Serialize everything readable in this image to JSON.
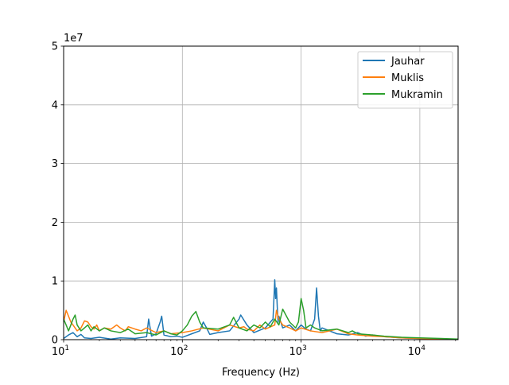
{
  "chart_data": {
    "type": "line",
    "xlabel": "Frequency (Hz)",
    "ylabel": "",
    "x_scale": "log",
    "xlim": [
      10,
      21000
    ],
    "ylim": [
      0,
      50000000
    ],
    "y_offset_text": "1e7",
    "y_ticks": [
      0,
      10000000,
      20000000,
      30000000,
      40000000,
      50000000
    ],
    "y_tick_labels": [
      "0",
      "1",
      "2",
      "3",
      "4",
      "5"
    ],
    "x_ticks": [
      10,
      100,
      1000,
      10000
    ],
    "x_tick_labels": [
      {
        "base": "10",
        "exp": "1"
      },
      {
        "base": "10",
        "exp": "2"
      },
      {
        "base": "10",
        "exp": "3"
      },
      {
        "base": "10",
        "exp": "4"
      }
    ],
    "grid": true,
    "legend_position": "top-right",
    "series": [
      {
        "name": "Jauhar",
        "color": "#1f77b4",
        "x": [
          10,
          11,
          12,
          13,
          14,
          15,
          17,
          20,
          25,
          30,
          40,
          50,
          52,
          55,
          60,
          65,
          67,
          70,
          80,
          90,
          100,
          120,
          140,
          150,
          160,
          170,
          200,
          250,
          300,
          310,
          350,
          400,
          500,
          580,
          600,
          610,
          620,
          630,
          640,
          650,
          700,
          800,
          900,
          1000,
          1100,
          1200,
          1300,
          1350,
          1400,
          1450,
          1500,
          2000,
          2500,
          3000,
          3500,
          4000,
          5000,
          7000,
          10000,
          15000,
          21000
        ],
        "y": [
          200000,
          800000,
          1200000,
          500000,
          900000,
          300000,
          200000,
          400000,
          100000,
          300000,
          200000,
          500000,
          3500000,
          600000,
          1000000,
          3000000,
          4000000,
          800000,
          500000,
          600000,
          400000,
          1000000,
          1500000,
          3000000,
          2000000,
          900000,
          1200000,
          1500000,
          3500000,
          4200000,
          2500000,
          1200000,
          2000000,
          3500000,
          10200000,
          7000000,
          8800000,
          5500000,
          3000000,
          4000000,
          2000000,
          2500000,
          1500000,
          2500000,
          1800000,
          1500000,
          3500000,
          8800000,
          4000000,
          1500000,
          2000000,
          1000000,
          800000,
          1200000,
          600000,
          800000,
          500000,
          300000,
          200000,
          100000,
          50000
        ]
      },
      {
        "name": "Muklis",
        "color": "#ff7f0e",
        "x": [
          10,
          10.5,
          11,
          11.5,
          12,
          13,
          14,
          15,
          16,
          17,
          18,
          19,
          20,
          22,
          25,
          28,
          30,
          33,
          35,
          40,
          45,
          50,
          60,
          70,
          80,
          100,
          120,
          150,
          200,
          250,
          300,
          330,
          350,
          400,
          450,
          500,
          600,
          620,
          650,
          700,
          800,
          900,
          1000,
          1200,
          1500,
          2000,
          2500,
          3000,
          4000,
          5000,
          7000,
          10000,
          15000,
          21000
        ],
        "y": [
          3000000,
          5000000,
          4000000,
          3000000,
          2500000,
          1500000,
          2000000,
          3200000,
          3000000,
          2200000,
          1800000,
          2500000,
          1500000,
          2000000,
          1800000,
          2500000,
          2000000,
          1500000,
          2200000,
          1800000,
          1500000,
          2000000,
          1200000,
          1500000,
          1000000,
          1200000,
          1500000,
          2000000,
          1500000,
          2500000,
          2000000,
          2200000,
          1800000,
          1500000,
          2500000,
          1800000,
          2500000,
          5000000,
          3500000,
          2500000,
          2000000,
          1500000,
          2000000,
          1500000,
          1200000,
          1800000,
          1000000,
          800000,
          600000,
          500000,
          300000,
          200000,
          100000,
          50000
        ]
      },
      {
        "name": "Mukramin",
        "color": "#2ca02c",
        "x": [
          10,
          10.5,
          11,
          11.5,
          12,
          12.5,
          13,
          14,
          15,
          16,
          17,
          18,
          20,
          22,
          25,
          30,
          35,
          40,
          50,
          60,
          70,
          80,
          90,
          100,
          110,
          120,
          130,
          140,
          150,
          200,
          250,
          270,
          300,
          350,
          400,
          450,
          500,
          550,
          600,
          650,
          700,
          800,
          900,
          950,
          1000,
          1050,
          1100,
          1200,
          1300,
          1500,
          2000,
          2500,
          2700,
          3000,
          4000,
          5000,
          7000,
          10000,
          15000,
          21000
        ],
        "y": [
          3500000,
          2500000,
          1500000,
          2500000,
          3500000,
          4200000,
          2500000,
          1500000,
          2000000,
          2500000,
          1500000,
          2200000,
          1500000,
          2000000,
          1500000,
          1200000,
          1800000,
          1000000,
          1200000,
          800000,
          1500000,
          1000000,
          800000,
          1500000,
          2500000,
          4000000,
          4800000,
          3000000,
          2000000,
          1800000,
          2500000,
          3800000,
          2000000,
          1500000,
          2500000,
          2000000,
          3000000,
          2200000,
          3500000,
          2500000,
          5200000,
          3000000,
          2000000,
          3000000,
          7000000,
          5000000,
          2000000,
          2500000,
          2000000,
          1500000,
          1800000,
          1200000,
          1500000,
          1000000,
          800000,
          600000,
          400000,
          300000,
          200000,
          100000
        ]
      }
    ]
  }
}
